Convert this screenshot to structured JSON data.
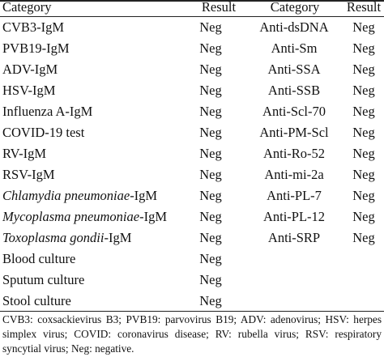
{
  "headers": {
    "category_left": "Category",
    "result_left": "Result",
    "category_right": "Category",
    "result_right": "Result"
  },
  "rows": [
    {
      "cat": "CVB3-IgM",
      "cat_italic": "",
      "cat_rest": "",
      "result": "Neg",
      "cat2": "Anti-dsDNA",
      "result2": "Neg"
    },
    {
      "cat": "PVB19-IgM",
      "cat_italic": "",
      "cat_rest": "",
      "result": "Neg",
      "cat2": "Anti-Sm",
      "result2": "Neg"
    },
    {
      "cat": "ADV-IgM",
      "cat_italic": "",
      "cat_rest": "",
      "result": "Neg",
      "cat2": "Anti-SSA",
      "result2": "Neg"
    },
    {
      "cat": "HSV-IgM",
      "cat_italic": "",
      "cat_rest": "",
      "result": "Neg",
      "cat2": "Anti-SSB",
      "result2": "Neg"
    },
    {
      "cat": "Influenza A-IgM",
      "cat_italic": "",
      "cat_rest": "",
      "result": "Neg",
      "cat2": "Anti-Scl-70",
      "result2": "Neg"
    },
    {
      "cat": "COVID-19 test",
      "cat_italic": "",
      "cat_rest": "",
      "result": "Neg",
      "cat2": "Anti-PM-Scl",
      "result2": "Neg"
    },
    {
      "cat": "RV-IgM",
      "cat_italic": "",
      "cat_rest": "",
      "result": "Neg",
      "cat2": "Anti-Ro-52",
      "result2": "Neg"
    },
    {
      "cat": "RSV-IgM",
      "cat_italic": "",
      "cat_rest": "",
      "result": "Neg",
      "cat2": "Anti-mi-2a",
      "result2": "Neg"
    },
    {
      "cat": "",
      "cat_italic": "Chlamydia pneumoniae",
      "cat_rest": "-IgM",
      "result": "Neg",
      "cat2": "Anti-PL-7",
      "result2": "Neg"
    },
    {
      "cat": "",
      "cat_italic": "Mycoplasma pneumoniae",
      "cat_rest": "-IgM",
      "result": "Neg",
      "cat2": "Anti-PL-12",
      "result2": "Neg"
    },
    {
      "cat": "",
      "cat_italic": "Toxoplasma gondii",
      "cat_rest": "-IgM",
      "result": "Neg",
      "cat2": "Anti-SRP",
      "result2": "Neg"
    },
    {
      "cat": "Blood culture",
      "cat_italic": "",
      "cat_rest": "",
      "result": "Neg",
      "cat2": "",
      "result2": ""
    },
    {
      "cat": "Sputum culture",
      "cat_italic": "",
      "cat_rest": "",
      "result": "Neg",
      "cat2": "",
      "result2": ""
    },
    {
      "cat": "Stool culture",
      "cat_italic": "",
      "cat_rest": "",
      "result": "Neg",
      "cat2": "",
      "result2": ""
    }
  ],
  "footnote": "CVB3: coxsackievirus B3; PVB19: parvovirus B19; ADV: adenovirus; HSV: herpes simplex virus; COVID: coronavirus disease; RV: rubella virus; RSV: respiratory syncytial virus; Neg: negative."
}
